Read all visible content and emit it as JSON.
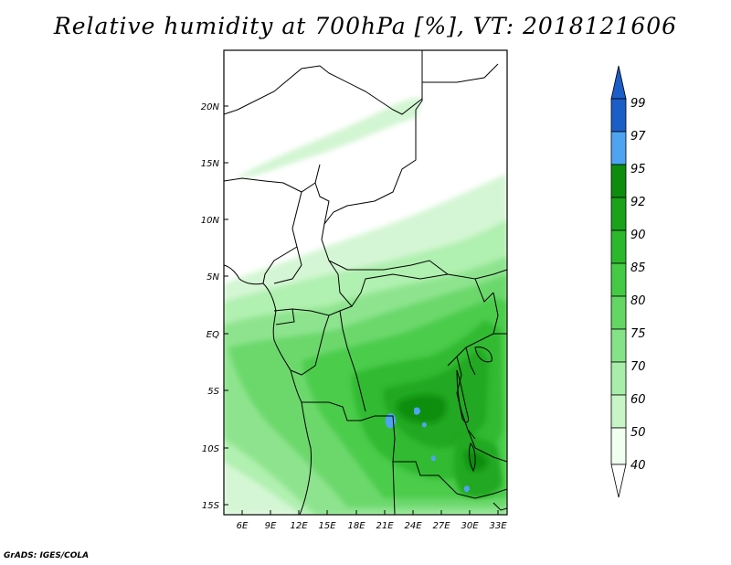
{
  "title": "Relative humidity at 700hPa [%], VT: 2018121606",
  "footer": "GrADS: IGES/COLA",
  "lat_labels": [
    "20N",
    "15N",
    "10N",
    "5N",
    "EQ",
    "5S",
    "10S",
    "15S"
  ],
  "lon_labels": [
    "6E",
    "9E",
    "12E",
    "15E",
    "18E",
    "21E",
    "24E",
    "27E",
    "30E",
    "33E"
  ],
  "colorbar": {
    "levels": [
      "40",
      "50",
      "60",
      "70",
      "75",
      "80",
      "85",
      "90",
      "92",
      "95",
      "97",
      "99"
    ],
    "colors": [
      "#f0fff0",
      "#c8f5c8",
      "#a8eea8",
      "#86e286",
      "#64d664",
      "#44ca44",
      "#2cb82c",
      "#1aa21a",
      "#0e8c0e",
      "#4ea4f0",
      "#2c7ee0",
      "#1c5ec8"
    ],
    "under_color": "#ffffff",
    "over_color": "#1c5ec8"
  }
}
